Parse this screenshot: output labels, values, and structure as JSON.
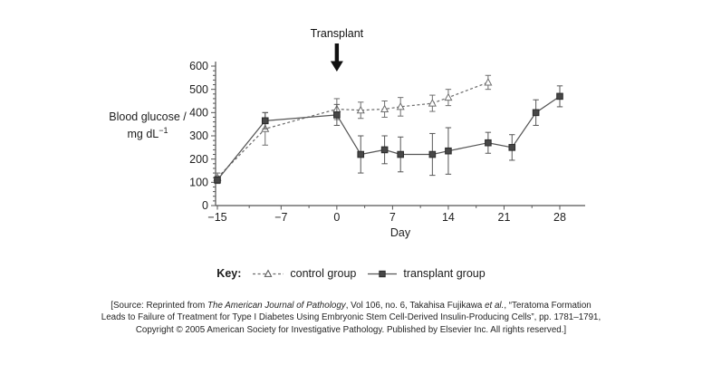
{
  "chart_data": {
    "type": "line",
    "title": "",
    "xlabel": "Day",
    "ylabel_line1": "Blood glucose /",
    "ylabel_line2": "mg dL",
    "ylabel_sup": "−1",
    "xlim": [
      -15,
      28
    ],
    "ylim": [
      0,
      600
    ],
    "x_ticks": [
      -15,
      -7,
      0,
      7,
      14,
      21,
      28
    ],
    "x_tick_labels": [
      "−15",
      "−7",
      "0",
      "7",
      "14",
      "21",
      "28"
    ],
    "y_tick_step": 100,
    "y_minor_step": 20,
    "grid": "off",
    "legend_position": "bottom",
    "annotation": {
      "label": "Transplant",
      "x": 0
    },
    "series": [
      {
        "name": "control group",
        "marker": "triangle-open",
        "line": "dashed",
        "color": "#6e6e6e",
        "x": [
          -15,
          -9,
          0,
          3,
          6,
          8,
          12,
          14,
          19
        ],
        "y": [
          120,
          330,
          415,
          410,
          415,
          425,
          440,
          465,
          530
        ],
        "err": [
          20,
          70,
          45,
          35,
          35,
          40,
          35,
          35,
          30
        ]
      },
      {
        "name": "transplant group",
        "marker": "square-filled",
        "line": "solid",
        "color": "#565656",
        "x": [
          -15,
          -9,
          0,
          3,
          6,
          8,
          12,
          14,
          19,
          22,
          25,
          28
        ],
        "y": [
          110,
          365,
          390,
          220,
          240,
          220,
          220,
          235,
          270,
          250,
          400,
          470
        ],
        "err": [
          15,
          35,
          45,
          80,
          60,
          75,
          90,
          100,
          45,
          55,
          55,
          45
        ]
      }
    ]
  },
  "legend": {
    "key_label": "Key:"
  },
  "citation": {
    "lines": [
      [
        {
          "t": "[Source: Reprinted from "
        },
        {
          "t": "The American Journal of Pathology",
          "i": true
        },
        {
          "t": ", Vol 106, no. 6, Takahisa Fujikawa "
        },
        {
          "t": "et al.",
          "i": true
        },
        {
          "t": ", “Teratoma Formation"
        }
      ],
      [
        {
          "t": "Leads to Failure of Treatment for Type I Diabetes Using Embryonic Stem Cell-Derived Insulin-Producing Cells”, pp. 1781–1791,"
        }
      ],
      [
        {
          "t": "Copyright © 2005 American Society for Investigative Pathology. Published by Elsevier Inc. All rights reserved.]"
        }
      ]
    ]
  }
}
